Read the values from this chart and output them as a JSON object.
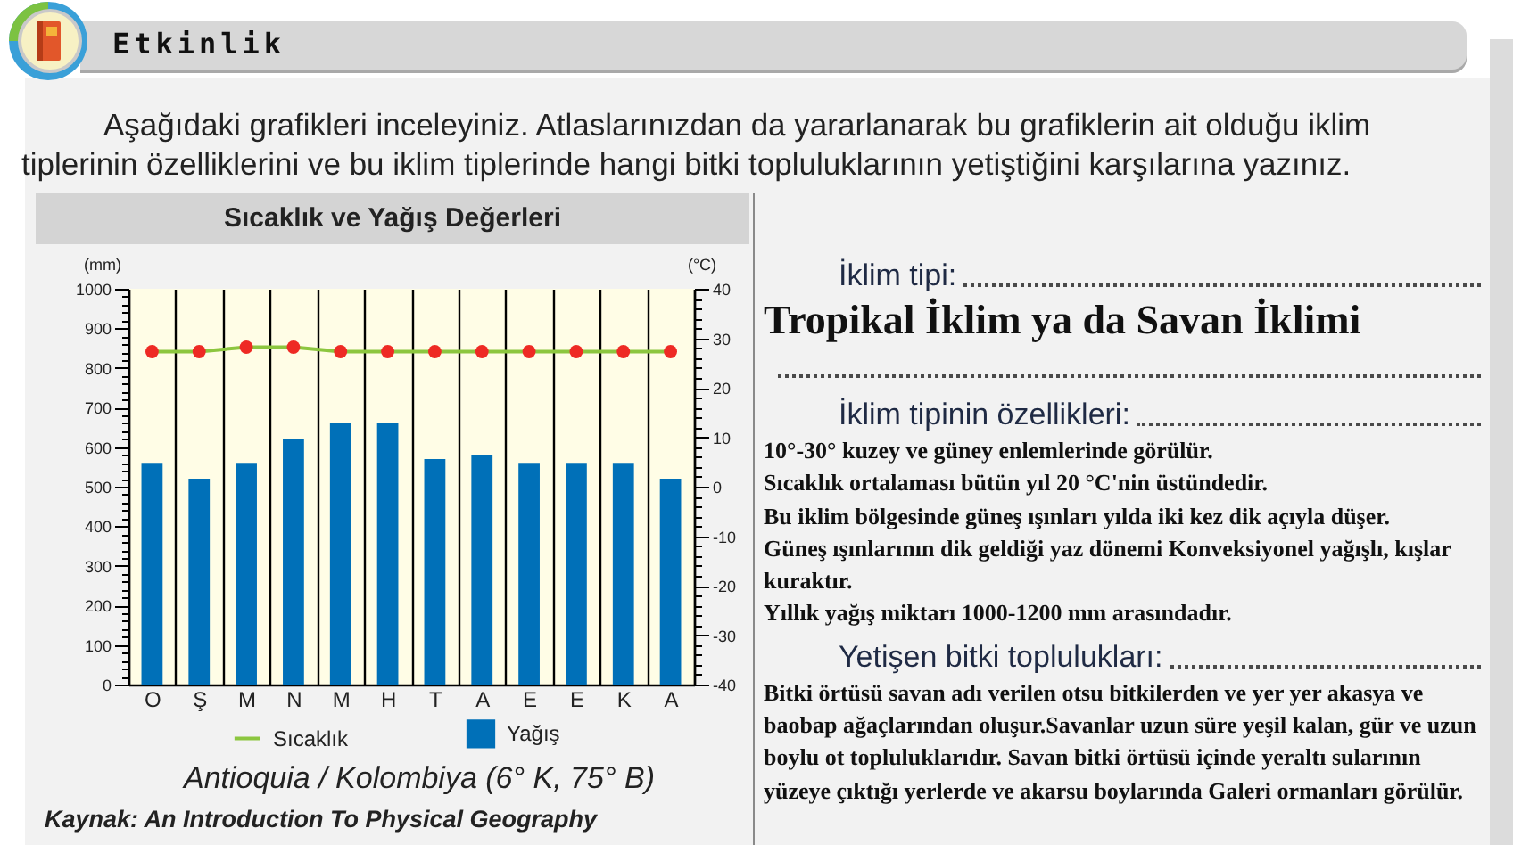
{
  "chart_data": [
    {
      "type": "other",
      "title": "Etkinlik",
      "annotations": [
        "Aşağıdaki grafikleri inceleyiniz. Atlaslarınızdan da yararlanarak bu grafiklerin ait olduğu iklim tiplerinin özelliklerini ve bu iklim tiplerinde hangi bitki topluluklarının yetiştiğini karşılarına yazınız."
      ]
    },
    {
      "type": "bar",
      "title": "Sıcaklık ve Yağış Değerleri",
      "categories": [
        "O",
        "Ş",
        "M",
        "N",
        "M",
        "H",
        "T",
        "A",
        "E",
        "E",
        "K",
        "A"
      ],
      "series": [
        {
          "name": "Sıcaklık",
          "type": "line",
          "axis": "y2",
          "color": "#8cc63f",
          "colors": [
            "#ee2a24",
            "#ee2a24",
            "#ee2a24",
            "#ee2a24",
            "#ee2a24",
            "#ee2a24",
            "#ee2a24",
            "#ee2a24",
            "#ee2a24",
            "#ee2a24",
            "#ee2a24",
            "#ee2a24"
          ],
          "values": [
            27.3,
            27.3,
            28.2,
            28.2,
            27.3,
            27.3,
            27.3,
            27.3,
            27.3,
            27.3,
            27.3,
            27.3
          ]
        },
        {
          "name": "Yağış",
          "color": "#0070b8",
          "values": [
            560,
            520,
            560,
            620,
            660,
            660,
            570,
            580,
            560,
            560,
            560,
            520
          ]
        }
      ],
      "ylabel": "(mm)",
      "y2label": "(°C)",
      "ylim": [
        0,
        1000
      ],
      "yticks": [
        0,
        {
          "value": 20,
          "label": null
        },
        {
          "value": 40,
          "label": null
        },
        {
          "value": 60,
          "label": null
        },
        {
          "value": 80,
          "label": null
        },
        100,
        {
          "value": 120,
          "label": null
        },
        {
          "value": 140,
          "label": null
        },
        {
          "value": 160,
          "label": null
        },
        {
          "value": 180,
          "label": null
        },
        200,
        {
          "value": 220,
          "label": null
        },
        {
          "value": 240,
          "label": null
        },
        {
          "value": 260,
          "label": null
        },
        {
          "value": 280,
          "label": null
        },
        300,
        {
          "value": 320,
          "label": null
        },
        {
          "value": 340,
          "label": null
        },
        {
          "value": 360,
          "label": null
        },
        {
          "value": 380,
          "label": null
        },
        400,
        {
          "value": 420,
          "label": null
        },
        {
          "value": 440,
          "label": null
        },
        {
          "value": 460,
          "label": null
        },
        {
          "value": 480,
          "label": null
        },
        500,
        {
          "value": 520,
          "label": null
        },
        {
          "value": 540,
          "label": null
        },
        {
          "value": 560,
          "label": null
        },
        {
          "value": 580,
          "label": null
        },
        600,
        {
          "value": 620,
          "label": null
        },
        {
          "value": 640,
          "label": null
        },
        {
          "value": 660,
          "label": null
        },
        {
          "value": 680,
          "label": null
        },
        700,
        {
          "value": 720,
          "label": null
        },
        {
          "value": 740,
          "label": null
        },
        {
          "value": 760,
          "label": null
        },
        {
          "value": 780,
          "label": null
        },
        800,
        {
          "value": 820,
          "label": null
        },
        {
          "value": 840,
          "label": null
        },
        {
          "value": 860,
          "label": null
        },
        {
          "value": 880,
          "label": null
        },
        900,
        {
          "value": 920,
          "label": null
        },
        {
          "value": 940,
          "label": null
        },
        {
          "value": 960,
          "label": null
        },
        {
          "value": 980,
          "label": null
        },
        1000
      ],
      "y2lim": [
        -40,
        40
      ],
      "y2ticks": [
        -40,
        {
          "value": -38,
          "label": null
        },
        {
          "value": -36,
          "label": null
        },
        {
          "value": -34,
          "label": null
        },
        {
          "value": -32,
          "label": null
        },
        -30,
        {
          "value": -28,
          "label": null
        },
        {
          "value": -26,
          "label": null
        },
        {
          "value": -24,
          "label": null
        },
        {
          "value": -22,
          "label": null
        },
        -20,
        {
          "value": -18,
          "label": null
        },
        {
          "value": -16,
          "label": null
        },
        {
          "value": -14,
          "label": null
        },
        {
          "value": -12,
          "label": null
        },
        -10,
        {
          "value": -8,
          "label": null
        },
        {
          "value": -6,
          "label": null
        },
        {
          "value": -4,
          "label": null
        },
        {
          "value": -2,
          "label": null
        },
        0,
        {
          "value": 2,
          "label": null
        },
        {
          "value": 4,
          "label": null
        },
        {
          "value": 6,
          "label": null
        },
        {
          "value": 8,
          "label": null
        },
        10,
        {
          "value": 12,
          "label": null
        },
        {
          "value": 14,
          "label": null
        },
        {
          "value": 16,
          "label": null
        },
        {
          "value": 18,
          "label": null
        },
        20,
        {
          "value": 22,
          "label": null
        },
        {
          "value": 24,
          "label": null
        },
        {
          "value": 26,
          "label": null
        },
        {
          "value": 28,
          "label": null
        },
        30,
        {
          "value": 32,
          "label": null
        },
        {
          "value": 34,
          "label": null
        },
        {
          "value": 36,
          "label": null
        },
        {
          "value": 38,
          "label": null
        },
        40
      ],
      "grid": "x",
      "legend": "bottom",
      "marker": "circle",
      "annotations": [
        "Antioquia / Kolombiya (6° K, 75° B)",
        "Kaynak: An Introduction To Physical Geography"
      ]
    },
    {
      "type": "other",
      "title": "İklim tipi:",
      "annotations": [
        "Tropikal İklim ya da Savan İklimi"
      ]
    },
    {
      "type": "other",
      "title": "İklim tipinin özellikleri:",
      "annotations": [
        "10°-30° kuzey ve güney enlemlerinde görülür.",
        "Sıcaklık ortalaması bütün yıl 20 °C'nin üstündedir.",
        "Bu iklim bölgesinde güneş ışınları yılda iki kez dik açıyla düşer.",
        "Güneş ışınlarının dik geldiği yaz dönemi Konveksiyonel yağışlı, kışlar kuraktır.",
        "Yıllık yağış miktarı 1000-1200 mm arasındadır."
      ]
    },
    {
      "type": "other",
      "title": "Yetişen bitki toplulukları:",
      "annotations": [
        "Bitki örtüsü savan adı verilen otsu bitkilerden ve yer yer akasya ve baobap ağaçlarından oluşur.Savanlar uzun süre yeşil kalan, gür ve uzun boylu ot topluluklarıdır. Savan bitki örtüsü içinde yeraltı sularının yüzeye çıktığı yerlerde ve akarsu boylarında Galeri ormanları görülür."
      ]
    }
  ]
}
